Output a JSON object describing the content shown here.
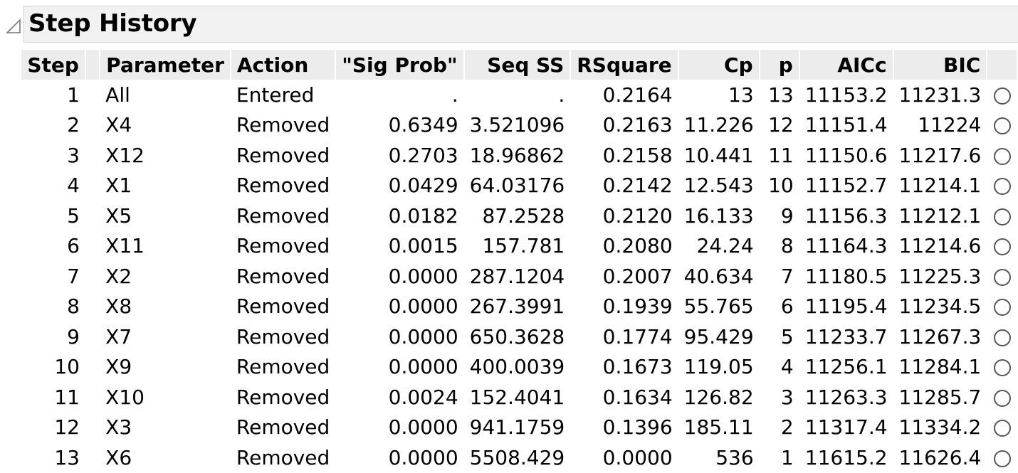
{
  "title": "Step History",
  "columns": [
    "Step",
    "Parameter",
    "Action",
    "\"Sig Prob\"",
    "Seq SS",
    "RSquare",
    "Cp",
    "p",
    "AICc",
    "BIC"
  ],
  "rows": [
    {
      "step": "1",
      "parameter": "All",
      "action": "Entered",
      "sig_prob": ".",
      "seq_ss": ".",
      "rsquare": "0.2164",
      "cp": "13",
      "p": "13",
      "aicc": "11153.2",
      "bic": "11231.3"
    },
    {
      "step": "2",
      "parameter": "X4",
      "action": "Removed",
      "sig_prob": "0.6349",
      "seq_ss": "3.521096",
      "rsquare": "0.2163",
      "cp": "11.226",
      "p": "12",
      "aicc": "11151.4",
      "bic": "11224"
    },
    {
      "step": "3",
      "parameter": "X12",
      "action": "Removed",
      "sig_prob": "0.2703",
      "seq_ss": "18.96862",
      "rsquare": "0.2158",
      "cp": "10.441",
      "p": "11",
      "aicc": "11150.6",
      "bic": "11217.6"
    },
    {
      "step": "4",
      "parameter": "X1",
      "action": "Removed",
      "sig_prob": "0.0429",
      "seq_ss": "64.03176",
      "rsquare": "0.2142",
      "cp": "12.543",
      "p": "10",
      "aicc": "11152.7",
      "bic": "11214.1"
    },
    {
      "step": "5",
      "parameter": "X5",
      "action": "Removed",
      "sig_prob": "0.0182",
      "seq_ss": "87.2528",
      "rsquare": "0.2120",
      "cp": "16.133",
      "p": "9",
      "aicc": "11156.3",
      "bic": "11212.1"
    },
    {
      "step": "6",
      "parameter": "X11",
      "action": "Removed",
      "sig_prob": "0.0015",
      "seq_ss": "157.781",
      "rsquare": "0.2080",
      "cp": "24.24",
      "p": "8",
      "aicc": "11164.3",
      "bic": "11214.6"
    },
    {
      "step": "7",
      "parameter": "X2",
      "action": "Removed",
      "sig_prob": "0.0000",
      "seq_ss": "287.1204",
      "rsquare": "0.2007",
      "cp": "40.634",
      "p": "7",
      "aicc": "11180.5",
      "bic": "11225.3"
    },
    {
      "step": "8",
      "parameter": "X8",
      "action": "Removed",
      "sig_prob": "0.0000",
      "seq_ss": "267.3991",
      "rsquare": "0.1939",
      "cp": "55.765",
      "p": "6",
      "aicc": "11195.4",
      "bic": "11234.5"
    },
    {
      "step": "9",
      "parameter": "X7",
      "action": "Removed",
      "sig_prob": "0.0000",
      "seq_ss": "650.3628",
      "rsquare": "0.1774",
      "cp": "95.429",
      "p": "5",
      "aicc": "11233.7",
      "bic": "11267.3"
    },
    {
      "step": "10",
      "parameter": "X9",
      "action": "Removed",
      "sig_prob": "0.0000",
      "seq_ss": "400.0039",
      "rsquare": "0.1673",
      "cp": "119.05",
      "p": "4",
      "aicc": "11256.1",
      "bic": "11284.1"
    },
    {
      "step": "11",
      "parameter": "X10",
      "action": "Removed",
      "sig_prob": "0.0024",
      "seq_ss": "152.4041",
      "rsquare": "0.1634",
      "cp": "126.82",
      "p": "3",
      "aicc": "11263.3",
      "bic": "11285.7"
    },
    {
      "step": "12",
      "parameter": "X3",
      "action": "Removed",
      "sig_prob": "0.0000",
      "seq_ss": "941.1759",
      "rsquare": "0.1396",
      "cp": "185.11",
      "p": "2",
      "aicc": "11317.4",
      "bic": "11334.2"
    },
    {
      "step": "13",
      "parameter": "X6",
      "action": "Removed",
      "sig_prob": "0.0000",
      "seq_ss": "5508.429",
      "rsquare": "0.0000",
      "cp": "536",
      "p": "1",
      "aicc": "11615.2",
      "bic": "11626.4"
    }
  ]
}
